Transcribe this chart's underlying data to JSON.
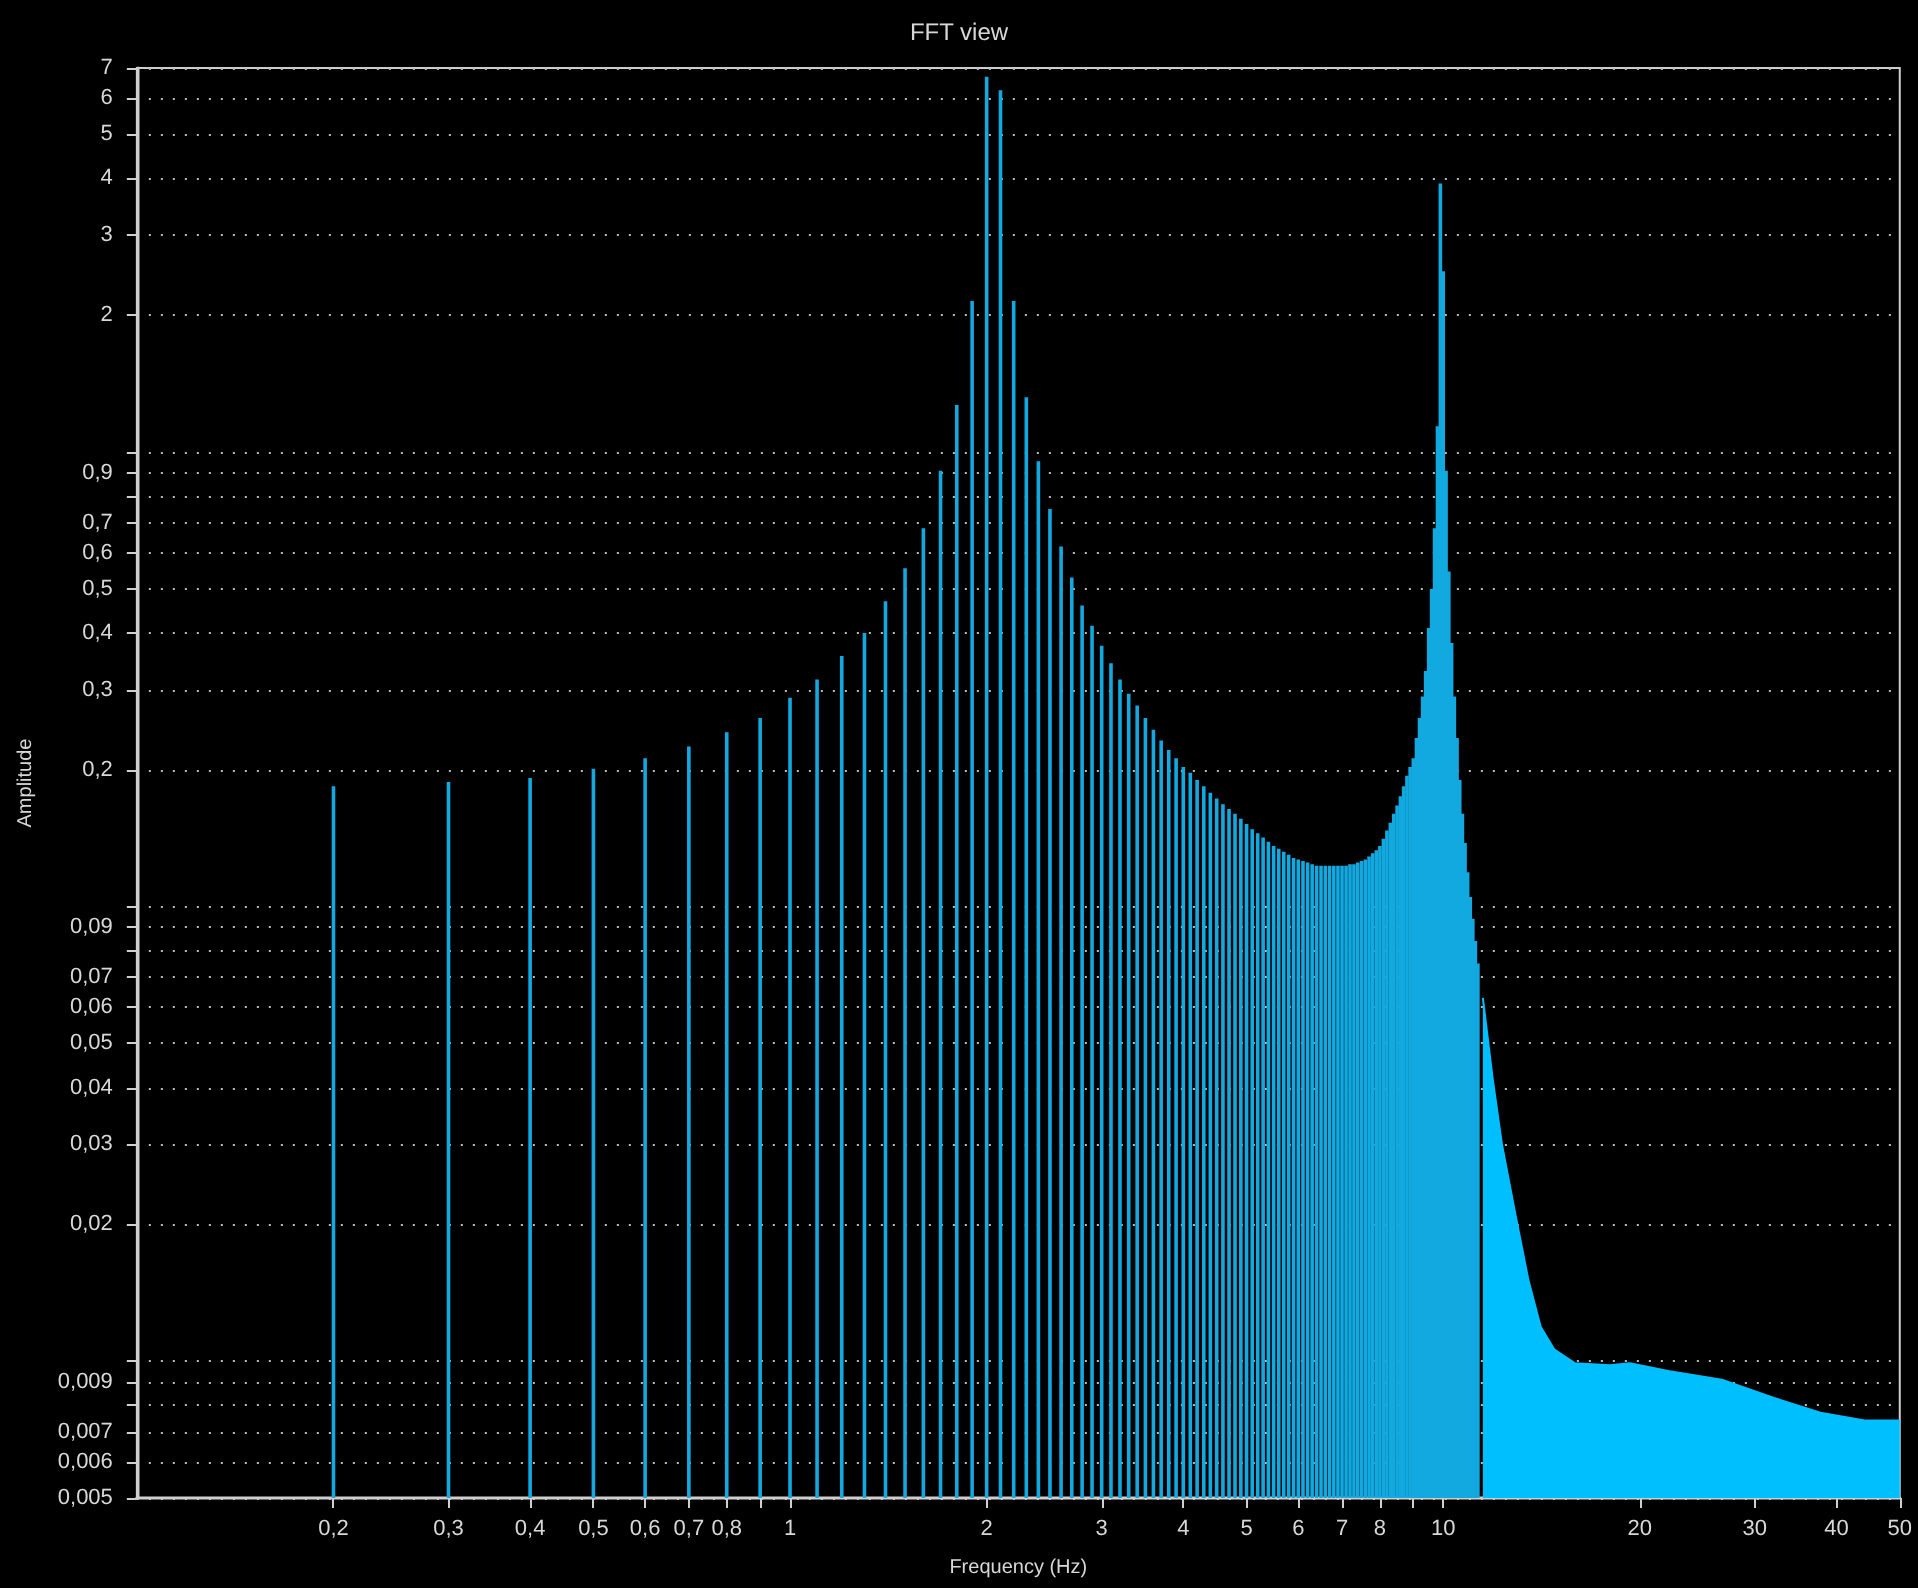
{
  "chart_data": {
    "type": "bar",
    "title": "FFT view",
    "xlabel": "Frequency (Hz)",
    "ylabel": "Amplitude",
    "log": "xy",
    "grid": "y",
    "xlim": [
      0.1,
      50
    ],
    "ylim": [
      0.005,
      7
    ],
    "xticks": [
      {
        "value": 0.2,
        "label": "0,2"
      },
      {
        "value": 0.3,
        "label": "0,3"
      },
      {
        "value": 0.4,
        "label": "0,4"
      },
      {
        "value": 0.5,
        "label": "0,5"
      },
      {
        "value": 0.6,
        "label": "0,6"
      },
      {
        "value": 0.7,
        "label": "0,7"
      },
      {
        "value": 0.8,
        "label": "0,8"
      },
      {
        "value": 0.9,
        "label": null
      },
      1,
      2,
      3,
      4,
      5,
      6,
      7,
      8,
      {
        "value": 9,
        "label": null
      },
      10,
      20,
      30,
      40,
      50
    ],
    "yticks": [
      {
        "value": 0.005,
        "label": "0,005"
      },
      {
        "value": 0.006,
        "label": "0,006"
      },
      {
        "value": 0.007,
        "label": "0,007"
      },
      {
        "value": 0.008,
        "label": null
      },
      {
        "value": 0.009,
        "label": "0,009"
      },
      {
        "value": 0.01,
        "label": null
      },
      {
        "value": 0.02,
        "label": "0,02"
      },
      {
        "value": 0.03,
        "label": "0,03"
      },
      {
        "value": 0.04,
        "label": "0,04"
      },
      {
        "value": 0.05,
        "label": "0,05"
      },
      {
        "value": 0.06,
        "label": "0,06"
      },
      {
        "value": 0.07,
        "label": "0,07"
      },
      {
        "value": 0.08,
        "label": null
      },
      {
        "value": 0.09,
        "label": "0,09"
      },
      {
        "value": 0.1,
        "label": null
      },
      {
        "value": 0.2,
        "label": "0,2"
      },
      {
        "value": 0.3,
        "label": "0,3"
      },
      {
        "value": 0.4,
        "label": "0,4"
      },
      {
        "value": 0.5,
        "label": "0,5"
      },
      {
        "value": 0.6,
        "label": "0,6"
      },
      {
        "value": 0.7,
        "label": "0,7"
      },
      {
        "value": 0.8,
        "label": null
      },
      {
        "value": 0.9,
        "label": "0,9"
      },
      {
        "value": 1,
        "label": null
      },
      2,
      3,
      4,
      5,
      6,
      7
    ],
    "series": [
      {
        "color": "#12a9e0",
        "x": [
          0.2,
          0.3,
          0.4,
          0.5,
          0.6,
          0.7,
          0.8,
          0.9,
          1.0,
          1.1,
          1.2,
          1.3,
          1.4,
          1.5,
          1.6,
          1.7,
          1.8,
          1.9,
          2.0,
          2.1,
          2.2,
          2.3,
          2.4,
          2.5,
          2.6,
          2.7,
          2.8,
          2.9,
          3.0,
          3.1,
          3.2,
          3.3,
          3.4,
          3.5,
          3.6,
          3.7,
          3.8,
          3.9,
          4.0,
          4.1,
          4.2,
          4.3,
          4.4,
          4.5,
          4.6,
          4.7,
          4.8,
          4.9,
          5.0,
          5.1,
          5.2,
          5.3,
          5.4,
          5.5,
          5.6,
          5.7,
          5.8,
          5.9,
          6.0,
          6.1,
          6.2,
          6.3,
          6.4,
          6.5,
          6.6,
          6.7,
          6.8,
          6.9,
          7.0,
          7.1,
          7.2,
          7.3,
          7.4,
          7.5,
          7.6,
          7.7,
          7.8,
          7.9,
          8.0,
          8.1,
          8.2,
          8.3,
          8.4,
          8.5,
          8.6,
          8.7,
          8.8,
          8.9,
          9.0,
          9.1,
          9.2,
          9.3,
          9.4,
          9.5,
          9.6,
          9.7,
          9.8,
          9.9,
          10.0,
          10.1,
          10.2,
          10.3,
          10.4,
          10.5,
          10.6,
          10.7,
          10.8,
          10.9,
          11.0,
          11.1,
          11.2,
          11.3
        ],
        "values": [
          0.184,
          0.188,
          0.192,
          0.201,
          0.212,
          0.225,
          0.242,
          0.26,
          0.288,
          0.316,
          0.356,
          0.4,
          0.47,
          0.555,
          0.68,
          0.91,
          1.27,
          2.15,
          6.7,
          6.25,
          2.15,
          1.32,
          0.955,
          0.75,
          0.62,
          0.53,
          0.46,
          0.415,
          0.375,
          0.343,
          0.316,
          0.294,
          0.277,
          0.26,
          0.245,
          0.232,
          0.221,
          0.212,
          0.203,
          0.197,
          0.19,
          0.184,
          0.178,
          0.173,
          0.168,
          0.164,
          0.16,
          0.156,
          0.152,
          0.148,
          0.145,
          0.142,
          0.139,
          0.136,
          0.134,
          0.132,
          0.13,
          0.128,
          0.127,
          0.126,
          0.125,
          0.124,
          0.123,
          0.123,
          0.123,
          0.123,
          0.123,
          0.123,
          0.123,
          0.123,
          0.124,
          0.124,
          0.125,
          0.126,
          0.127,
          0.129,
          0.131,
          0.133,
          0.136,
          0.141,
          0.147,
          0.153,
          0.16,
          0.167,
          0.175,
          0.184,
          0.194,
          0.203,
          0.212,
          0.235,
          0.26,
          0.29,
          0.33,
          0.41,
          0.5,
          0.68,
          1.14,
          3.9,
          2.5,
          0.91,
          0.546,
          0.38,
          0.29,
          0.235,
          0.19,
          0.16,
          0.138,
          0.119,
          0.105,
          0.094,
          0.084,
          0.075
        ]
      },
      {
        "type": "area",
        "color": "#00bfff",
        "x": [
          11.5,
          11.9,
          12.3,
          12.9,
          13.5,
          14.1,
          14.8,
          15.9,
          18.0,
          19.3,
          22.2,
          26.7,
          32.1,
          37.8,
          44.4,
          50
        ],
        "values": [
          0.063,
          0.042,
          0.03,
          0.021,
          0.0151,
          0.0119,
          0.0106,
          0.0099,
          0.0098,
          0.0099,
          0.0095,
          0.0091,
          0.0083,
          0.0077,
          0.0074,
          0.0074
        ]
      }
    ]
  }
}
